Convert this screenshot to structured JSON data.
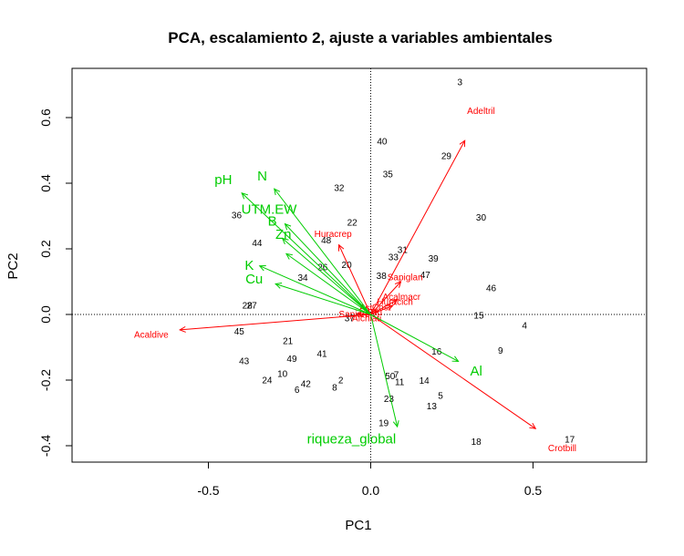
{
  "chart_data": {
    "type": "scatter",
    "title": "PCA, escalamiento 2, ajuste a variables ambientales",
    "xlabel": "PC1",
    "ylabel": "PC2",
    "xlim": [
      -0.92,
      0.85
    ],
    "ylim": [
      -0.45,
      0.75
    ],
    "x_ticks": [
      -0.5,
      0.0,
      0.5
    ],
    "x_tick_labels": [
      "-0.5",
      "0.0",
      "0.5"
    ],
    "y_ticks": [
      -0.4,
      -0.2,
      0.0,
      0.2,
      0.4,
      0.6
    ],
    "y_tick_labels": [
      "-0.4",
      "-0.2",
      "0.0",
      "0.2",
      "0.4",
      "0.6"
    ],
    "reference_lines": {
      "x": 0,
      "y": 0,
      "style": "dotted"
    },
    "colors": {
      "species": "#ff0000",
      "env": "#00cc00",
      "sites": "#000000"
    },
    "sites": [
      {
        "label": "3",
        "x": 0.275,
        "y": 0.705
      },
      {
        "label": "40",
        "x": 0.035,
        "y": 0.525
      },
      {
        "label": "29",
        "x": 0.233,
        "y": 0.48
      },
      {
        "label": "35",
        "x": 0.053,
        "y": 0.425
      },
      {
        "label": "32",
        "x": -0.097,
        "y": 0.383
      },
      {
        "label": "36",
        "x": -0.413,
        "y": 0.3
      },
      {
        "label": "30",
        "x": 0.34,
        "y": 0.293
      },
      {
        "label": "22",
        "x": -0.057,
        "y": 0.278
      },
      {
        "label": "48",
        "x": -0.137,
        "y": 0.223
      },
      {
        "label": "44",
        "x": -0.35,
        "y": 0.215
      },
      {
        "label": "31",
        "x": 0.098,
        "y": 0.195
      },
      {
        "label": "33",
        "x": 0.07,
        "y": 0.172
      },
      {
        "label": "39",
        "x": 0.193,
        "y": 0.168
      },
      {
        "label": "20",
        "x": -0.074,
        "y": 0.148
      },
      {
        "label": "26",
        "x": -0.148,
        "y": 0.142
      },
      {
        "label": "38",
        "x": 0.033,
        "y": 0.115
      },
      {
        "label": "47",
        "x": 0.168,
        "y": 0.118
      },
      {
        "label": "34",
        "x": -0.209,
        "y": 0.11
      },
      {
        "label": "46",
        "x": 0.371,
        "y": 0.078
      },
      {
        "label": "27",
        "x": -0.366,
        "y": 0.025
      },
      {
        "label": "28",
        "x": -0.38,
        "y": 0.025
      },
      {
        "label": "37",
        "x": -0.065,
        "y": -0.014
      },
      {
        "label": "15",
        "x": 0.333,
        "y": -0.006
      },
      {
        "label": "4",
        "x": 0.474,
        "y": -0.036
      },
      {
        "label": "45",
        "x": -0.405,
        "y": -0.054
      },
      {
        "label": "21",
        "x": -0.255,
        "y": -0.084
      },
      {
        "label": "16",
        "x": 0.203,
        "y": -0.115
      },
      {
        "label": "9",
        "x": 0.4,
        "y": -0.112
      },
      {
        "label": "41",
        "x": -0.15,
        "y": -0.122
      },
      {
        "label": "49",
        "x": -0.243,
        "y": -0.138
      },
      {
        "label": "43",
        "x": -0.39,
        "y": -0.144
      },
      {
        "label": "10",
        "x": -0.272,
        "y": -0.183
      },
      {
        "label": "50",
        "x": 0.06,
        "y": -0.19
      },
      {
        "label": "7",
        "x": 0.079,
        "y": -0.186
      },
      {
        "label": "11",
        "x": 0.089,
        "y": -0.209
      },
      {
        "label": "14",
        "x": 0.165,
        "y": -0.204
      },
      {
        "label": "24",
        "x": -0.319,
        "y": -0.203
      },
      {
        "label": "2",
        "x": -0.092,
        "y": -0.203
      },
      {
        "label": "42",
        "x": -0.2,
        "y": -0.214
      },
      {
        "label": "6",
        "x": -0.227,
        "y": -0.232
      },
      {
        "label": "8",
        "x": -0.111,
        "y": -0.225
      },
      {
        "label": "5",
        "x": 0.215,
        "y": -0.25
      },
      {
        "label": "23",
        "x": 0.056,
        "y": -0.26
      },
      {
        "label": "13",
        "x": 0.188,
        "y": -0.282
      },
      {
        "label": "19",
        "x": 0.04,
        "y": -0.333
      },
      {
        "label": "17",
        "x": 0.613,
        "y": -0.384
      },
      {
        "label": "18",
        "x": 0.325,
        "y": -0.39
      }
    ],
    "species_vectors": [
      {
        "label": "Adeltril",
        "x": 0.29,
        "y": 0.53,
        "label_x": 0.34,
        "label_y": 0.618
      },
      {
        "label": "Crotbill",
        "x": 0.508,
        "y": -0.348,
        "label_x": 0.59,
        "label_y": -0.41
      },
      {
        "label": "Acaldive",
        "x": -0.588,
        "y": -0.047,
        "label_x": -0.676,
        "label_y": -0.064
      },
      {
        "label": "Huracrep",
        "x": -0.098,
        "y": 0.212,
        "label_x": -0.116,
        "label_y": 0.243
      },
      {
        "label": "Sapiglan",
        "x": 0.093,
        "y": 0.1,
        "label_x": 0.106,
        "label_y": 0.111
      },
      {
        "label": "Acalmacr",
        "x": 0.082,
        "y": 0.045,
        "label_x": 0.095,
        "label_y": 0.052
      },
      {
        "label": "Huracich",
        "x": 0.068,
        "y": 0.027,
        "label_x": 0.075,
        "label_y": 0.036
      },
      {
        "label": "Sapiarb",
        "x": -0.041,
        "y": 0.003,
        "label_x": -0.05,
        "label_y": -0.002
      },
      {
        "label": "Alchlati",
        "x": -0.011,
        "y": -0.003,
        "label_x": -0.012,
        "label_y": -0.014
      },
      {
        "label": "Cost",
        "x": 0.022,
        "y": 0.01,
        "label_x": 0.033,
        "label_y": 0.02
      },
      {
        "label": "Ast",
        "x": -0.01,
        "y": 0.012,
        "label_x": -0.015,
        "label_y": 0.018
      },
      {
        "label": "Ttu",
        "x": 0.005,
        "y": 0.004,
        "label_x": 0.015,
        "label_y": 0.004
      }
    ],
    "env_vectors": [
      {
        "label": "pH",
        "x": -0.397,
        "y": 0.37,
        "label_x": -0.454,
        "label_y": 0.41
      },
      {
        "label": "N",
        "x": -0.297,
        "y": 0.383,
        "label_x": -0.334,
        "label_y": 0.421
      },
      {
        "label": "UTM.EW",
        "x": -0.264,
        "y": 0.276,
        "label_x": -0.313,
        "label_y": 0.32
      },
      {
        "label": "B",
        "x": -0.272,
        "y": 0.232,
        "label_x": -0.303,
        "label_y": 0.283
      },
      {
        "label": "Zn",
        "x": -0.26,
        "y": 0.185,
        "label_x": -0.269,
        "label_y": 0.243
      },
      {
        "label": "K",
        "x": -0.342,
        "y": 0.148,
        "label_x": -0.374,
        "label_y": 0.149
      },
      {
        "label": "Cu",
        "x": -0.293,
        "y": 0.093,
        "label_x": -0.359,
        "label_y": 0.107
      },
      {
        "label": "Al",
        "x": 0.27,
        "y": -0.143,
        "label_x": 0.325,
        "label_y": -0.174
      },
      {
        "label": "riqueza_global",
        "x": 0.082,
        "y": -0.342,
        "label_x": -0.059,
        "label_y": -0.38
      }
    ]
  }
}
